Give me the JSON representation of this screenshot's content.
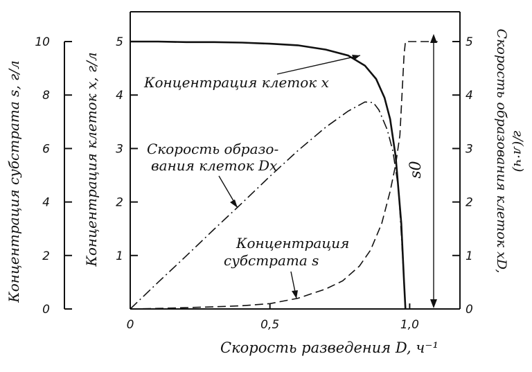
{
  "chart_data": {
    "type": "line",
    "xlabel": "Скорость разведения D, ч⁻¹",
    "x_ticks": [
      "0",
      "0,5",
      "1,0"
    ],
    "xlim": [
      0,
      1.18
    ],
    "axes": {
      "left_outer": {
        "label": "Концентрация субстрата s, г/л",
        "ticks": [
          "0",
          "2",
          "4",
          "6",
          "8",
          "10"
        ],
        "ylim": [
          0,
          10
        ]
      },
      "left_inner": {
        "label": "Концентрация клеток x, г/л",
        "ticks": [
          "1",
          "2",
          "3",
          "4",
          "5"
        ],
        "ylim": [
          0,
          5
        ]
      },
      "right": {
        "label": "Скорость образования клеток xD, г/(л·ч)",
        "ticks": [
          "0",
          "1",
          "2",
          "3",
          "4",
          "5"
        ],
        "ylim": [
          0,
          5
        ]
      }
    },
    "series": [
      {
        "name": "Концентрация клеток x",
        "axis": "left_inner",
        "style": "solid",
        "x": [
          0,
          0.1,
          0.2,
          0.3,
          0.4,
          0.5,
          0.6,
          0.7,
          0.78,
          0.84,
          0.88,
          0.91,
          0.93,
          0.95,
          0.97,
          0.98,
          0.985
        ],
        "y": [
          5.0,
          5.0,
          4.99,
          4.99,
          4.98,
          4.96,
          4.93,
          4.85,
          4.74,
          4.55,
          4.3,
          3.95,
          3.55,
          2.85,
          1.6,
          0.5,
          0.0
        ]
      },
      {
        "name": "Скорость образования клеток Dx",
        "axis": "right",
        "style": "dashdot",
        "x": [
          0,
          0.1,
          0.2,
          0.3,
          0.4,
          0.5,
          0.6,
          0.7,
          0.78,
          0.84,
          0.87,
          0.89,
          0.92,
          0.94,
          0.96,
          0.97,
          0.98,
          0.985
        ],
        "y": [
          0.0,
          0.5,
          0.99,
          1.49,
          1.98,
          2.48,
          2.96,
          3.4,
          3.7,
          3.87,
          3.86,
          3.72,
          3.35,
          2.95,
          2.25,
          1.4,
          0.5,
          0.0
        ]
      },
      {
        "name": "Концентрация субстрата s",
        "axis": "left_outer",
        "style": "dashed",
        "x": [
          0,
          0.1,
          0.2,
          0.3,
          0.4,
          0.5,
          0.6,
          0.7,
          0.76,
          0.82,
          0.86,
          0.9,
          0.93,
          0.95,
          0.965,
          0.98,
          0.985,
          1.0,
          1.1
        ],
        "y": [
          0,
          0.02,
          0.05,
          0.08,
          0.12,
          0.2,
          0.4,
          0.75,
          1.05,
          1.6,
          2.2,
          3.2,
          4.4,
          5.4,
          6.5,
          9.5,
          10,
          10,
          10
        ]
      }
    ],
    "annotations": {
      "cells": "Концентрация клеток x",
      "rate_line1": "Скорость образо-",
      "rate_line2": "вания клеток Dx",
      "substrate_line1": "Концентрация",
      "substrate_line2": "субстрата s",
      "s0": "s0"
    }
  }
}
